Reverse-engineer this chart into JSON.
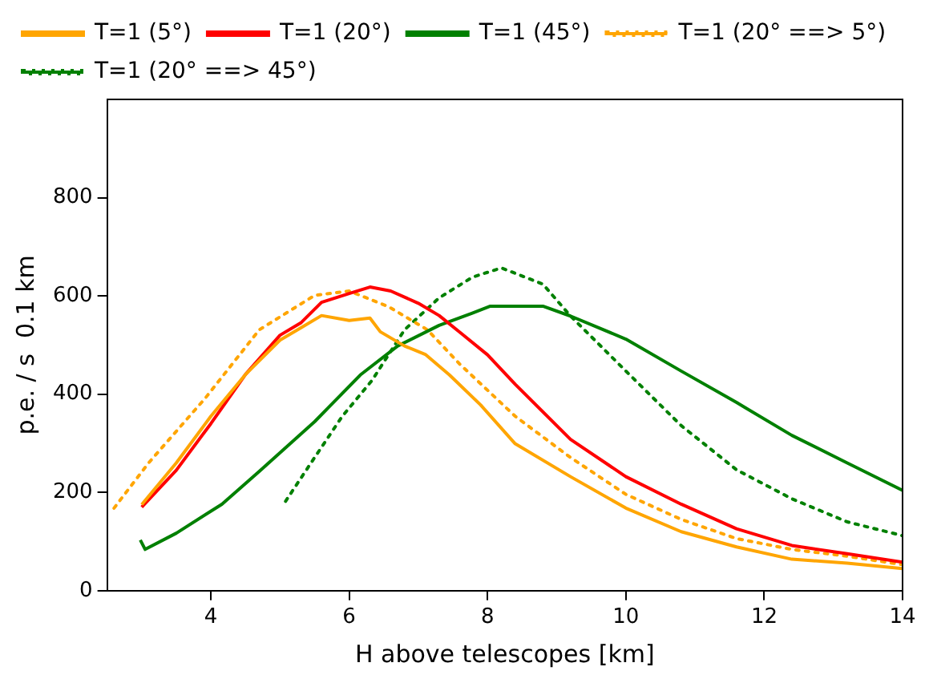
{
  "chart_data": {
    "type": "line",
    "xlabel": "H above telescopes [km]",
    "ylabel": "p.e. / s  0.1 km",
    "xlim": [
      2.5,
      14
    ],
    "xticks": [
      4,
      6,
      8,
      10,
      12,
      14
    ],
    "ylim": [
      0,
      1000
    ],
    "yticks": [
      0,
      200,
      400,
      600,
      800
    ],
    "grid": false,
    "legend": "top",
    "marker": "none",
    "series": [
      {
        "name": "T=1 (5°)",
        "color": "#ffa500",
        "line_style": "solid",
        "x": [
          3,
          3.5,
          4,
          4.5,
          5,
          5.3,
          5.6,
          6,
          6.3,
          6.45,
          6.8,
          7.1,
          7.45,
          7.9,
          8.4,
          9.2,
          10,
          10.8,
          11.6,
          12.4,
          13.2,
          14
        ],
        "values": [
          175,
          260,
          355,
          440,
          510,
          535,
          560,
          550,
          555,
          527,
          498,
          481,
          439,
          378,
          299,
          232,
          168,
          120,
          89,
          64,
          56,
          45
        ]
      },
      {
        "name": "T=1 (20°)",
        "color": "#ff0000",
        "line_style": "solid",
        "x": [
          3,
          3.5,
          4,
          4.5,
          5,
          5.3,
          5.6,
          6,
          6.3,
          6.6,
          7,
          7.3,
          7.6,
          8,
          8.4,
          9.2,
          10,
          10.8,
          11.6,
          12.4,
          13.2,
          14
        ],
        "values": [
          170,
          245,
          340,
          440,
          520,
          545,
          587,
          605,
          618,
          610,
          585,
          560,
          526,
          480,
          420,
          308,
          232,
          176,
          126,
          92,
          75,
          58
        ]
      },
      {
        "name": "T=1 (45°)",
        "color": "#008000",
        "line_style": "solid",
        "x": [
          2.98,
          3.05,
          3.5,
          4.16,
          4.7,
          5.5,
          6.16,
          6.7,
          7.3,
          7.78,
          8.04,
          8.8,
          9.2,
          10,
          10.8,
          11.6,
          12.4,
          13.2,
          14
        ],
        "values": [
          103,
          84,
          117,
          176,
          243,
          344,
          439,
          498,
          540,
          565,
          579,
          579,
          559,
          512,
          447,
          383,
          316,
          260,
          204
        ]
      },
      {
        "name": "T=1 (20° ==> 5°)",
        "color": "#ffa500",
        "line_style": "dotted",
        "x": [
          2.6,
          3.1,
          3.92,
          4.7,
          5.5,
          6,
          6.57,
          7.13,
          7.6,
          8.4,
          9.2,
          10,
          10.8,
          11.6,
          12.4,
          13.2,
          14
        ],
        "values": [
          168,
          260,
          392,
          531,
          601,
          610,
          578,
          531,
          461,
          355,
          271,
          196,
          145,
          106,
          84,
          70,
          53
        ]
      },
      {
        "name": "T=1 (20° ==> 45°)",
        "color": "#008000",
        "line_style": "dotted",
        "x": [
          5.08,
          5.5,
          5.9,
          6.33,
          6.8,
          7.3,
          7.78,
          8.2,
          8.8,
          9.2,
          10,
          10.8,
          11.6,
          12.4,
          13.2,
          14
        ],
        "values": [
          182,
          271,
          355,
          428,
          531,
          596,
          638,
          657,
          624,
          559,
          447,
          336,
          246,
          187,
          140,
          112
        ]
      }
    ]
  }
}
